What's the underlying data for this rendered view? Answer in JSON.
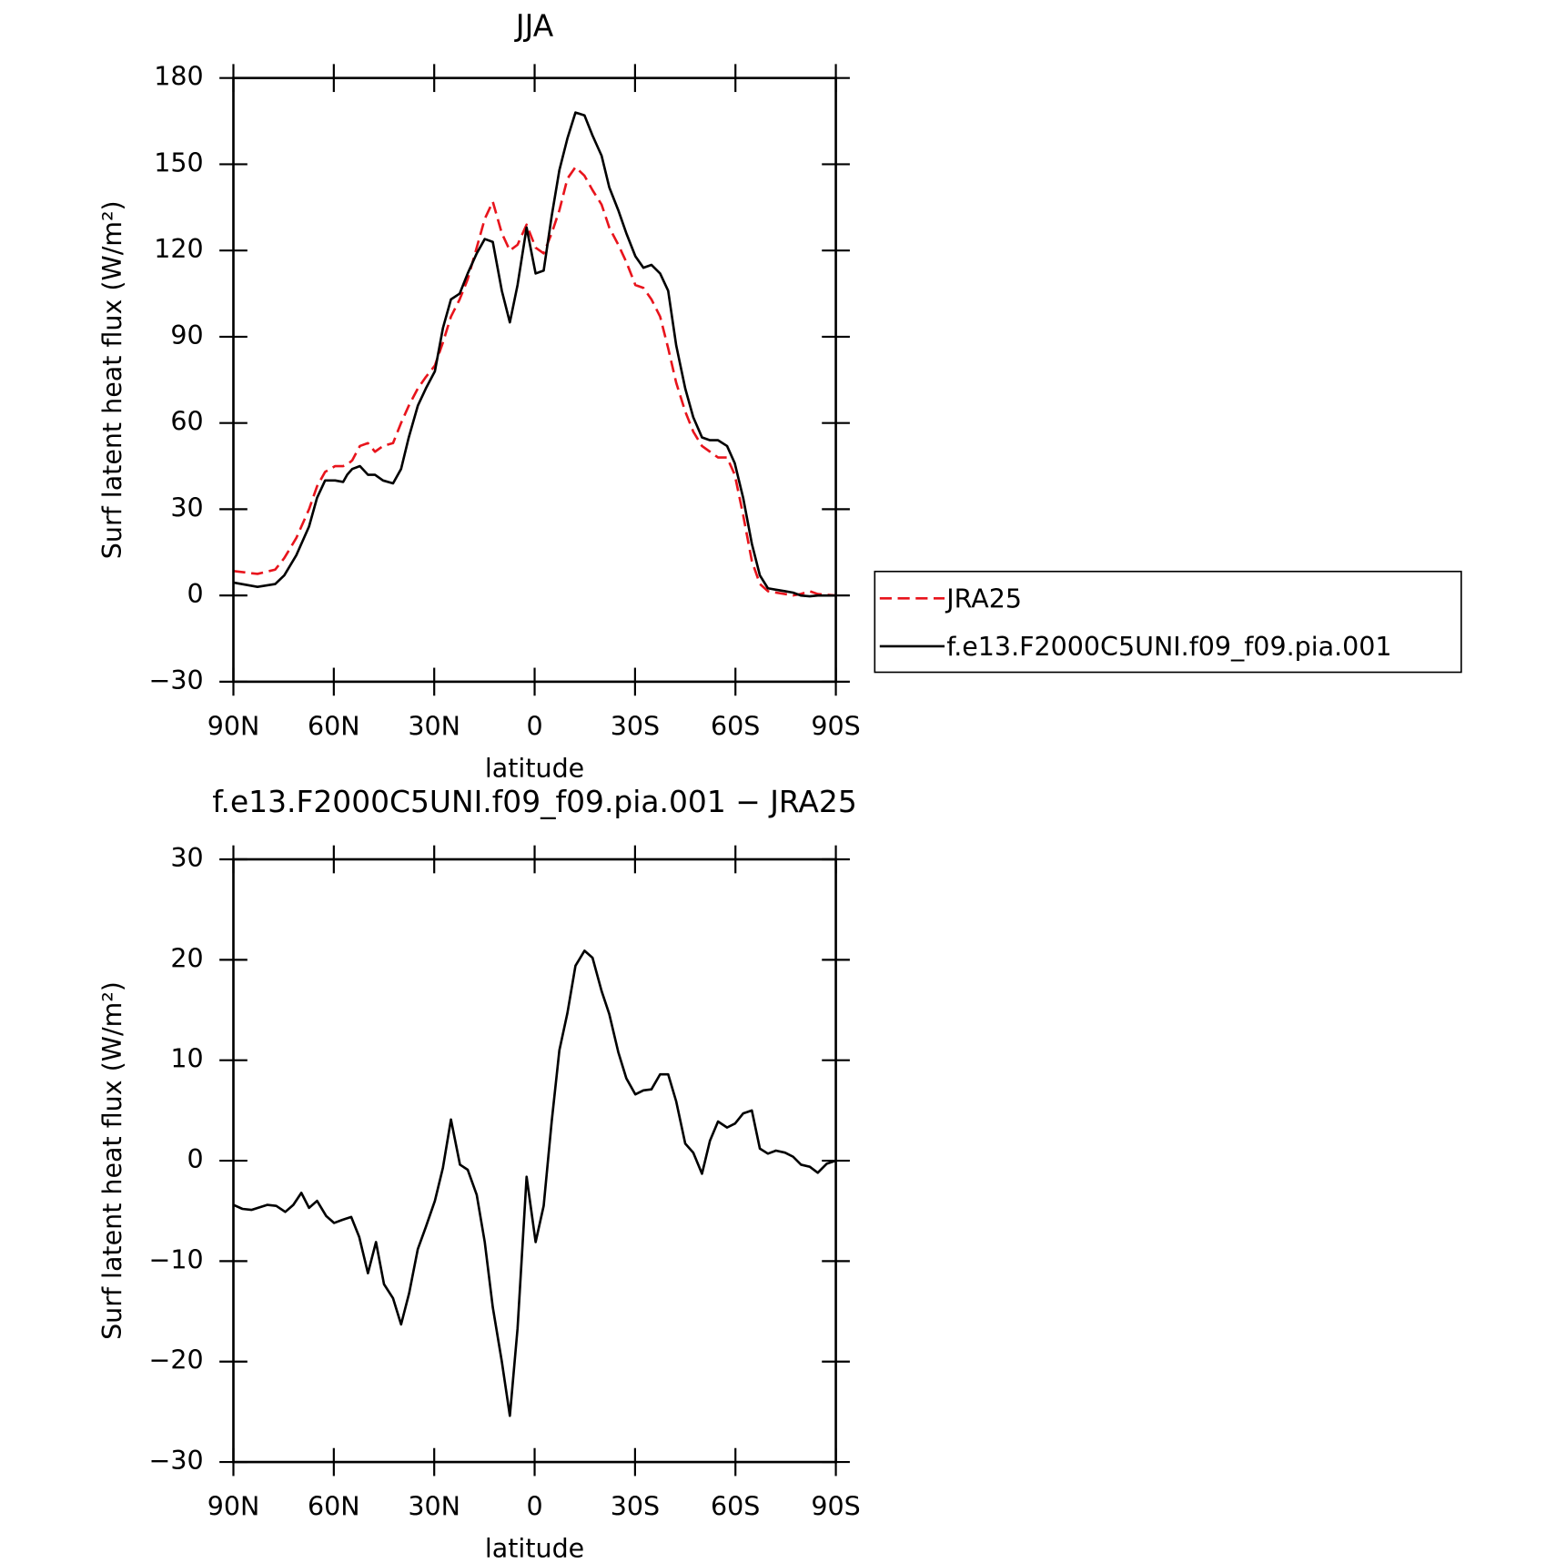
{
  "chart_data": [
    {
      "type": "line",
      "title": "JJA",
      "xlabel": "latitude",
      "ylabel": "Surf latent heat flux (W/m²)",
      "xlim": [
        90,
        -90
      ],
      "ylim": [
        -30,
        180
      ],
      "xticks": [
        {
          "value": 90,
          "label": "90N"
        },
        {
          "value": 60,
          "label": "60N"
        },
        {
          "value": 30,
          "label": "30N"
        },
        0,
        {
          "value": -30,
          "label": "30S"
        },
        {
          "value": -60,
          "label": "60S"
        },
        {
          "value": -90,
          "label": "90S"
        }
      ],
      "yticks": [
        {
          "value": -30,
          "label": "−30"
        },
        0,
        30,
        60,
        90,
        120,
        150,
        180
      ],
      "legend": "right",
      "x": [
        90,
        82.8,
        77.5,
        74.8,
        71.2,
        67.4,
        65,
        62.6,
        59.6,
        57.2,
        56,
        54.5,
        52.2,
        49.8,
        47.7,
        45.3,
        42.3,
        39.9,
        37.6,
        34.9,
        32.5,
        29.8,
        27.4,
        25,
        22.4,
        20,
        17.3,
        14.9,
        12.5,
        9.8,
        7.4,
        5.1,
        2.4,
        -0.3,
        -2.7,
        -5.1,
        -7.4,
        -9.8,
        -12.2,
        -14.9,
        -17.3,
        -20,
        -22.3,
        -25,
        -27.4,
        -30.1,
        -32.5,
        -34.9,
        -37.5,
        -39.9,
        -42.3,
        -45,
        -47.4,
        -50,
        -52.4,
        -54.8,
        -57.5,
        -59.8,
        -62.3,
        -64.9,
        -67.3,
        -69.7,
        -72.1,
        -74.8,
        -77.2,
        -79.5,
        -82.2,
        -84.6,
        -90
      ],
      "series": [
        {
          "name": "JRA25",
          "color": "#e8141c",
          "dash": "dashed",
          "values": [
            8.5,
            7.5,
            9,
            13,
            20,
            30,
            38,
            43,
            45,
            45,
            45.5,
            47,
            52,
            53,
            50,
            52,
            53,
            60,
            66,
            72,
            76,
            80,
            88,
            97,
            103,
            110,
            121,
            131,
            137,
            126,
            120,
            122,
            129,
            121,
            119,
            126,
            134,
            145,
            149,
            146,
            141,
            136,
            128,
            122,
            116,
            108,
            107,
            103,
            97,
            86,
            74,
            64,
            57,
            52,
            50,
            48,
            48,
            42,
            28,
            12,
            4,
            1.5,
            1,
            0.5,
            0,
            0.5,
            1.5,
            0.5,
            0
          ]
        },
        {
          "name": "f.e13.F2000C5UNI.f09_f09.pia.001",
          "color": "#000000",
          "dash": "solid",
          "values": [
            4.5,
            3,
            4,
            7,
            14,
            24,
            34,
            40,
            40,
            39.5,
            42,
            44,
            45,
            42,
            42,
            40,
            39,
            44,
            55,
            66,
            72,
            78,
            93,
            103,
            105,
            112,
            119,
            124,
            123,
            106,
            95,
            108,
            128,
            112,
            113,
            132,
            148,
            159,
            168,
            167,
            160,
            153,
            142,
            134,
            126,
            118,
            114,
            115,
            112,
            106,
            87,
            72,
            62,
            55,
            54,
            54,
            52,
            46,
            34,
            18,
            7,
            2.5,
            2,
            1.5,
            1,
            0,
            -0.3,
            0,
            0
          ]
        }
      ]
    },
    {
      "type": "line",
      "title": "f.e13.F2000C5UNI.f09_f09.pia.001 − JRA25",
      "xlabel": "latitude",
      "ylabel": "Surf latent heat flux (W/m²)",
      "xlim": [
        90,
        -90
      ],
      "ylim": [
        -30,
        30
      ],
      "xticks": [
        {
          "value": 90,
          "label": "90N"
        },
        {
          "value": 60,
          "label": "60N"
        },
        {
          "value": 30,
          "label": "30N"
        },
        0,
        {
          "value": -30,
          "label": "30S"
        },
        {
          "value": -60,
          "label": "60S"
        },
        {
          "value": -90,
          "label": "90S"
        }
      ],
      "yticks": [
        {
          "value": -30,
          "label": "−30"
        },
        {
          "value": -20,
          "label": "−20"
        },
        {
          "value": -10,
          "label": "−10"
        },
        0,
        10,
        20,
        30
      ],
      "color": "#000000",
      "x": [
        90,
        87.3,
        84.6,
        79.9,
        77.2,
        74.5,
        72.1,
        69.7,
        67.4,
        65,
        62.3,
        59.9,
        57.5,
        54.8,
        52.4,
        49.8,
        47.4,
        45,
        42.3,
        39.9,
        37.5,
        34.9,
        32.5,
        29.8,
        27.4,
        25,
        22.3,
        20,
        17.3,
        14.9,
        12.5,
        9.8,
        7.4,
        5.1,
        2.4,
        -0.3,
        -2.7,
        -5.1,
        -7.4,
        -9.8,
        -12.2,
        -14.9,
        -17.3,
        -20,
        -22.3,
        -25,
        -27.4,
        -30.1,
        -32.5,
        -34.9,
        -37.5,
        -39.9,
        -42.3,
        -45,
        -47.4,
        -50,
        -52.4,
        -54.8,
        -57.5,
        -59.9,
        -62.3,
        -64.9,
        -67.3,
        -69.7,
        -72.1,
        -74.8,
        -77.2,
        -79.6,
        -82.2,
        -84.6,
        -87.3,
        -90
      ],
      "values": [
        -4.4,
        -4.8,
        -4.9,
        -4.4,
        -4.5,
        -5.1,
        -4.4,
        -3.2,
        -4.7,
        -4,
        -5.5,
        -6.2,
        -5.9,
        -5.6,
        -7.6,
        -11.2,
        -8.1,
        -12.3,
        -13.7,
        -16.3,
        -13.2,
        -8.8,
        -6.6,
        -4,
        -0.7,
        4.1,
        -0.4,
        -0.9,
        -3.4,
        -8.1,
        -14.6,
        -20,
        -25.4,
        -16.7,
        -1.6,
        -8.1,
        -4.5,
        3.9,
        11,
        14.7,
        19.4,
        20.9,
        20.2,
        16.9,
        14.6,
        10.8,
        8.2,
        6.6,
        7,
        7.1,
        8.6,
        8.6,
        5.9,
        1.7,
        0.8,
        -1.3,
        2,
        3.9,
        3.3,
        3.7,
        4.7,
        5,
        1.2,
        0.7,
        1,
        0.8,
        0.4,
        -0.4,
        -0.6,
        -1.2,
        -0.3,
        0
      ]
    }
  ]
}
